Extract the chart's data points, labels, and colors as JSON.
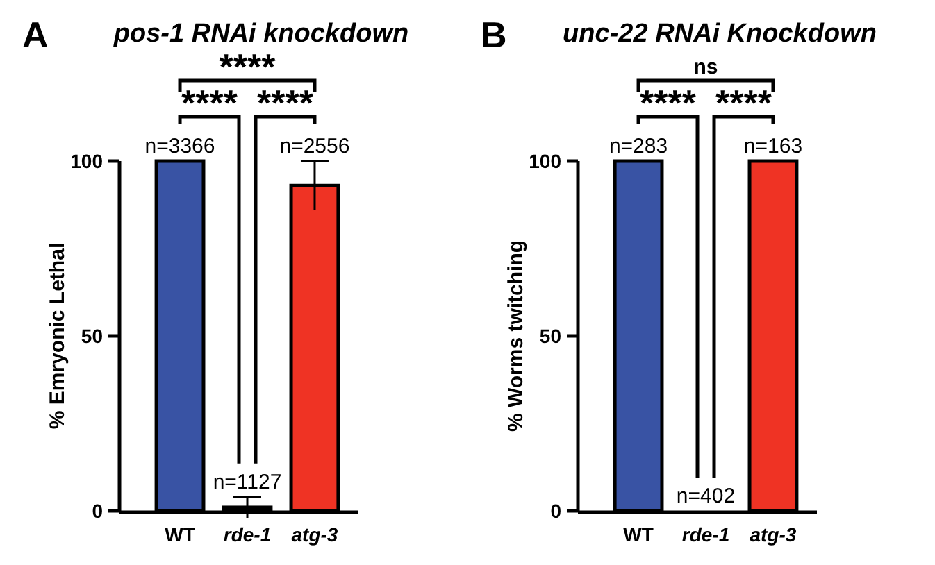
{
  "chart_data": [
    {
      "type": "bar",
      "title": "pos-1 RNAi knockdown",
      "ylabel": "% Emryonic Lethal",
      "categories": [
        "WT",
        "rde-1",
        "atg-3"
      ],
      "values": [
        100,
        1,
        93
      ],
      "colors": [
        "#3953a4",
        "#111111",
        "#ef3324"
      ],
      "errors": [
        null,
        3,
        7
      ],
      "ylim": [
        0,
        100
      ],
      "yticks": [
        0,
        50,
        100
      ],
      "grid": false,
      "legend": false,
      "annotations": [
        "A",
        "****",
        "****",
        "****",
        {
          "text": "n=3366",
          "x": "WT",
          "y": 100
        },
        {
          "text": "n=1127",
          "x": "rde-1",
          "y": 1
        },
        {
          "text": "n=2556",
          "x": "atg-3",
          "y": 93
        }
      ]
    },
    {
      "type": "bar",
      "title": "unc-22 RNAi Knockdown",
      "ylabel": "% Worms twitching",
      "categories": [
        "WT",
        "rde-1",
        "atg-3"
      ],
      "values": [
        100,
        0,
        100
      ],
      "colors": [
        "#3953a4",
        "#111111",
        "#ef3324"
      ],
      "ylim": [
        0,
        100
      ],
      "yticks": [
        0,
        50,
        100
      ],
      "grid": false,
      "legend": false,
      "annotations": [
        "B",
        "ns",
        "****",
        "****",
        {
          "text": "n=283",
          "x": "WT",
          "y": 100
        },
        {
          "text": "n=402",
          "x": "rde-1",
          "y": 0
        },
        {
          "text": "n=163",
          "x": "atg-3",
          "y": 100
        }
      ]
    }
  ]
}
